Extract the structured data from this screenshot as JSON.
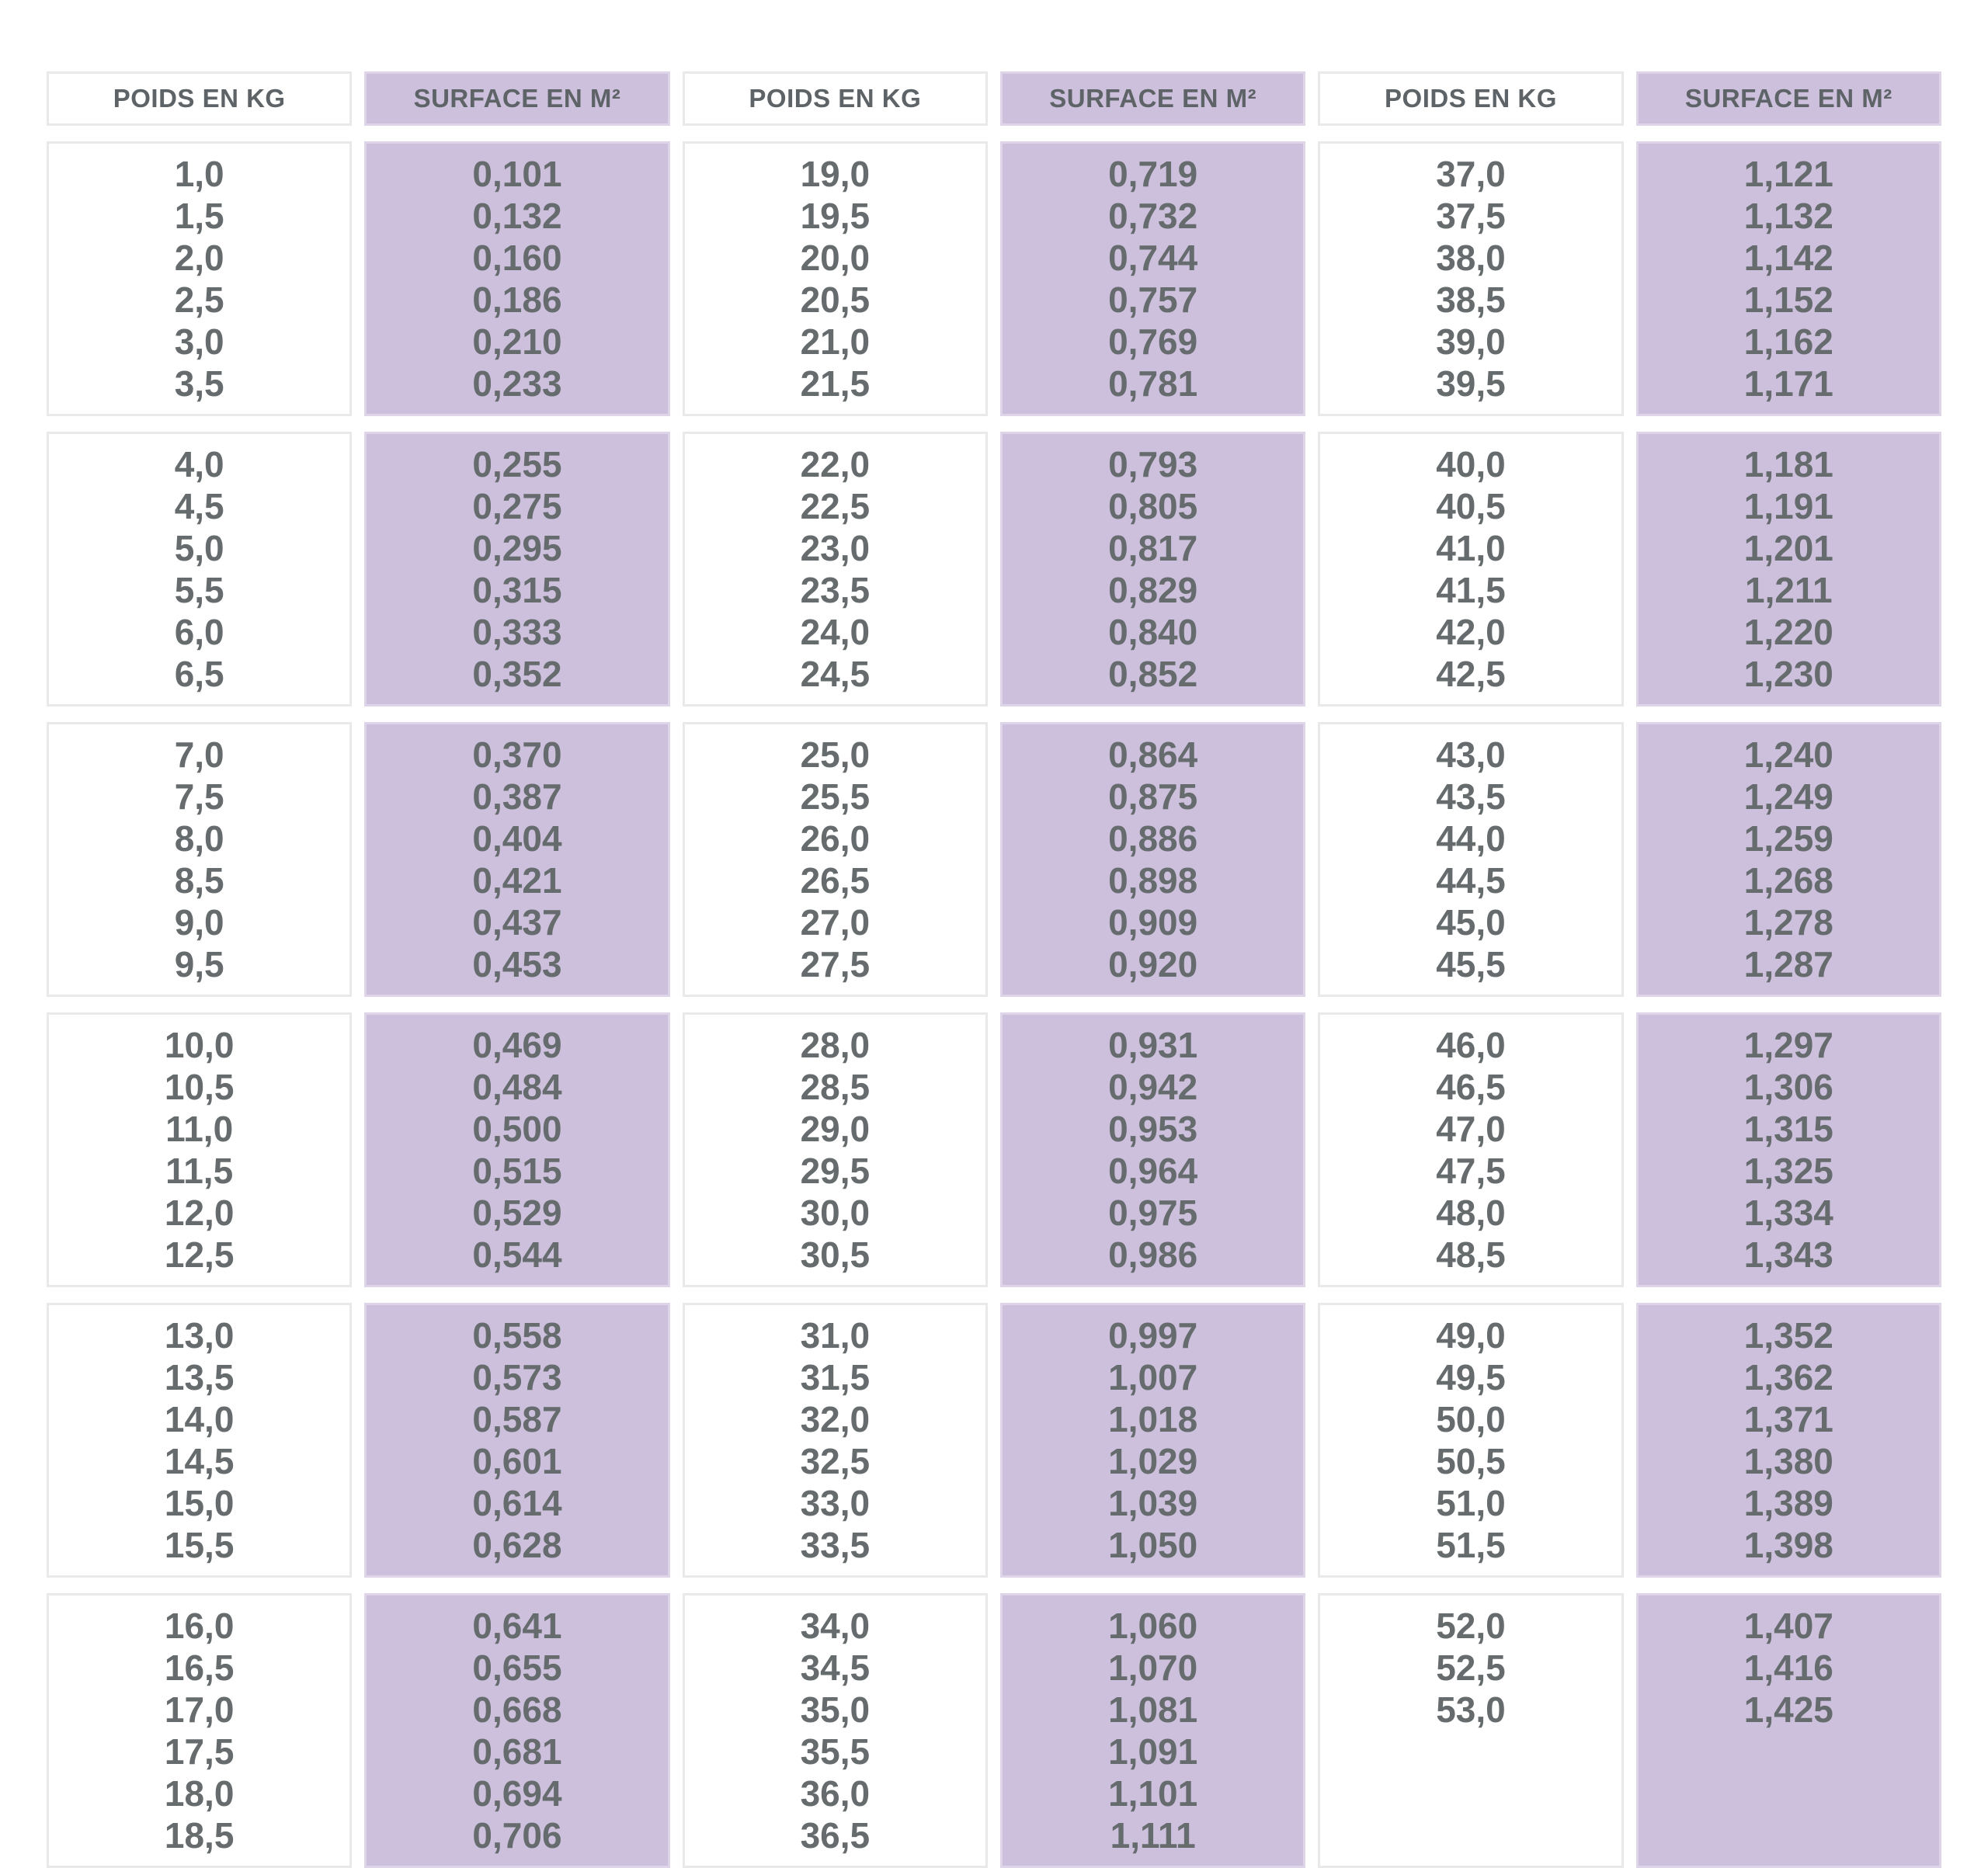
{
  "colors": {
    "surface_cell_bg": "#ccc0dc",
    "surface_cell_border": "#ded5e8",
    "cell_border": "#e9e9e9",
    "header_text": "#5d6366",
    "value_text": "#666b6d"
  },
  "table": {
    "headers": [
      {
        "kind": "poids",
        "label": "POIDS EN KG"
      },
      {
        "kind": "surface",
        "label": "SURFACE EN M²"
      },
      {
        "kind": "poids",
        "label": "POIDS EN KG"
      },
      {
        "kind": "surface",
        "label": "SURFACE EN M²"
      },
      {
        "kind": "poids",
        "label": "POIDS EN KG"
      },
      {
        "kind": "surface",
        "label": "SURFACE EN M²"
      }
    ],
    "blocks": [
      {
        "columns": [
          [
            "1,0",
            "1,5",
            "2,0",
            "2,5",
            "3,0",
            "3,5"
          ],
          [
            "0,101",
            "0,132",
            "0,160",
            "0,186",
            "0,210",
            "0,233"
          ],
          [
            "19,0",
            "19,5",
            "20,0",
            "20,5",
            "21,0",
            "21,5"
          ],
          [
            "0,719",
            "0,732",
            "0,744",
            "0,757",
            "0,769",
            "0,781"
          ],
          [
            "37,0",
            "37,5",
            "38,0",
            "38,5",
            "39,0",
            "39,5"
          ],
          [
            "1,121",
            "1,132",
            "1,142",
            "1,152",
            "1,162",
            "1,171"
          ]
        ]
      },
      {
        "columns": [
          [
            "4,0",
            "4,5",
            "5,0",
            "5,5",
            "6,0",
            "6,5"
          ],
          [
            "0,255",
            "0,275",
            "0,295",
            "0,315",
            "0,333",
            "0,352"
          ],
          [
            "22,0",
            "22,5",
            "23,0",
            "23,5",
            "24,0",
            "24,5"
          ],
          [
            "0,793",
            "0,805",
            "0,817",
            "0,829",
            "0,840",
            "0,852"
          ],
          [
            "40,0",
            "40,5",
            "41,0",
            "41,5",
            "42,0",
            "42,5"
          ],
          [
            "1,181",
            "1,191",
            "1,201",
            "1,211",
            "1,220",
            "1,230"
          ]
        ]
      },
      {
        "columns": [
          [
            "7,0",
            "7,5",
            "8,0",
            "8,5",
            "9,0",
            "9,5"
          ],
          [
            "0,370",
            "0,387",
            "0,404",
            "0,421",
            "0,437",
            "0,453"
          ],
          [
            "25,0",
            "25,5",
            "26,0",
            "26,5",
            "27,0",
            "27,5"
          ],
          [
            "0,864",
            "0,875",
            "0,886",
            "0,898",
            "0,909",
            "0,920"
          ],
          [
            "43,0",
            "43,5",
            "44,0",
            "44,5",
            "45,0",
            "45,5"
          ],
          [
            "1,240",
            "1,249",
            "1,259",
            "1,268",
            "1,278",
            "1,287"
          ]
        ]
      },
      {
        "columns": [
          [
            "10,0",
            "10,5",
            "11,0",
            "11,5",
            "12,0",
            "12,5"
          ],
          [
            "0,469",
            "0,484",
            "0,500",
            "0,515",
            "0,529",
            "0,544"
          ],
          [
            "28,0",
            "28,5",
            "29,0",
            "29,5",
            "30,0",
            "30,5"
          ],
          [
            "0,931",
            "0,942",
            "0,953",
            "0,964",
            "0,975",
            "0,986"
          ],
          [
            "46,0",
            "46,5",
            "47,0",
            "47,5",
            "48,0",
            "48,5"
          ],
          [
            "1,297",
            "1,306",
            "1,315",
            "1,325",
            "1,334",
            "1,343"
          ]
        ]
      },
      {
        "columns": [
          [
            "13,0",
            "13,5",
            "14,0",
            "14,5",
            "15,0",
            "15,5"
          ],
          [
            "0,558",
            "0,573",
            "0,587",
            "0,601",
            "0,614",
            "0,628"
          ],
          [
            "31,0",
            "31,5",
            "32,0",
            "32,5",
            "33,0",
            "33,5"
          ],
          [
            "0,997",
            "1,007",
            "1,018",
            "1,029",
            "1,039",
            "1,050"
          ],
          [
            "49,0",
            "49,5",
            "50,0",
            "50,5",
            "51,0",
            "51,5"
          ],
          [
            "1,352",
            "1,362",
            "1,371",
            "1,380",
            "1,389",
            "1,398"
          ]
        ]
      },
      {
        "columns": [
          [
            "16,0",
            "16,5",
            "17,0",
            "17,5",
            "18,0",
            "18,5"
          ],
          [
            "0,641",
            "0,655",
            "0,668",
            "0,681",
            "0,694",
            "0,706"
          ],
          [
            "34,0",
            "34,5",
            "35,0",
            "35,5",
            "36,0",
            "36,5"
          ],
          [
            "1,060",
            "1,070",
            "1,081",
            "1,091",
            "1,101",
            "1,111"
          ],
          [
            "52,0",
            "52,5",
            "53,0"
          ],
          [
            "1,407",
            "1,416",
            "1,425"
          ]
        ]
      }
    ]
  }
}
